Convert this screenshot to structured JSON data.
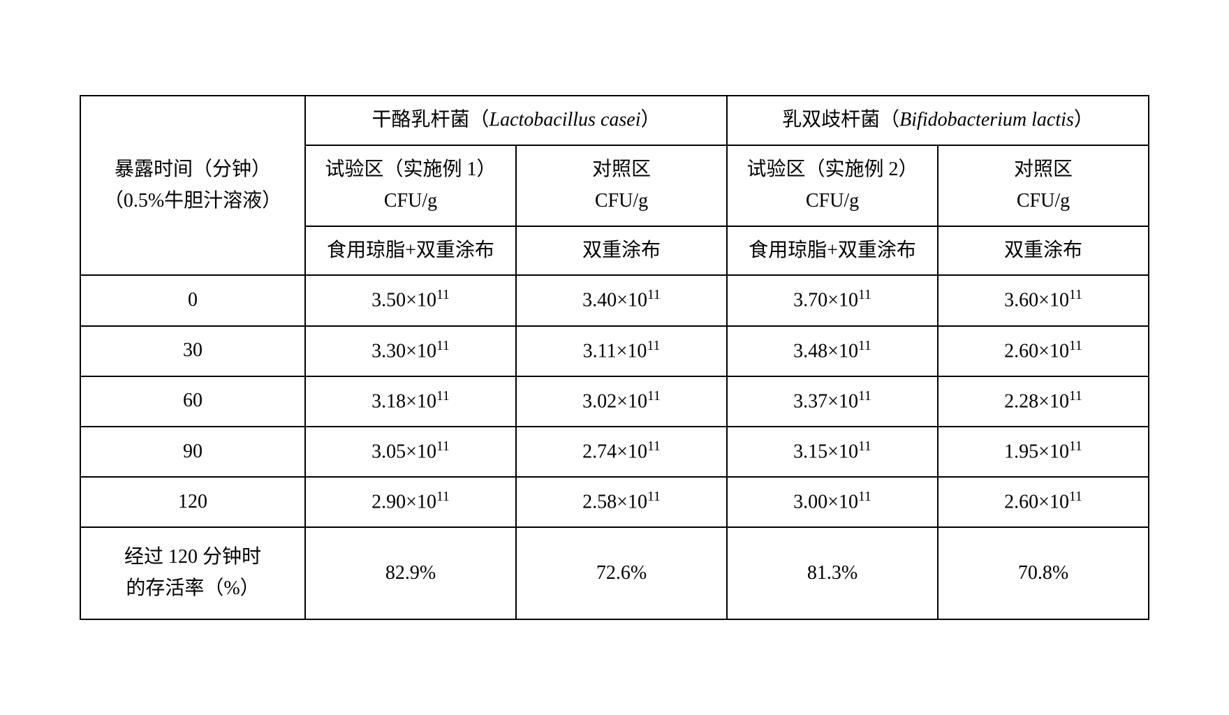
{
  "table": {
    "row_header_label_line1": "暴露时间（分钟）",
    "row_header_label_line2": "（0.5%牛胆汁溶液）",
    "group1_header_cn": "干酪乳杆菌（",
    "group1_header_latin": "Lactobacillus casei",
    "group1_header_close": "）",
    "group2_header_cn": "乳双歧杆菌（",
    "group2_header_latin": "Bifidobacterium lactis",
    "group2_header_close": "）",
    "sub1_col1_line1": "试验区（实施例 1）",
    "sub1_col1_line2": "CFU/g",
    "sub1_col2_line1": "对照区",
    "sub1_col2_line2": "CFU/g",
    "sub2_col1_line1": "试验区（实施例 2）",
    "sub2_col1_line2": "CFU/g",
    "sub2_col2_line1": "对照区",
    "sub2_col2_line2": "CFU/g",
    "method1": "食用琼脂+双重涂布",
    "method2": "双重涂布",
    "rows": [
      {
        "time": "0",
        "v1": "3.50×10",
        "e1": "11",
        "v2": "3.40×10",
        "e2": "11",
        "v3": "3.70×10",
        "e3": "11",
        "v4": "3.60×10",
        "e4": "11"
      },
      {
        "time": "30",
        "v1": "3.30×10",
        "e1": "11",
        "v2": "3.11×10",
        "e2": "11",
        "v3": "3.48×10",
        "e3": "11",
        "v4": "2.60×10",
        "e4": "11"
      },
      {
        "time": "60",
        "v1": "3.18×10",
        "e1": "11",
        "v2": "3.02×10",
        "e2": "11",
        "v3": "3.37×10",
        "e3": "11",
        "v4": "2.28×10",
        "e4": "11"
      },
      {
        "time": "90",
        "v1": "3.05×10",
        "e1": "11",
        "v2": "2.74×10",
        "e2": "11",
        "v3": "3.15×10",
        "e3": "11",
        "v4": "1.95×10",
        "e4": "11"
      },
      {
        "time": "120",
        "v1": "2.90×10",
        "e1": "11",
        "v2": "2.58×10",
        "e2": "11",
        "v3": "3.00×10",
        "e3": "11",
        "v4": "2.60×10",
        "e4": "11"
      }
    ],
    "last_row_label_line1": "经过 120 分钟时",
    "last_row_label_line2": "的存活率（%）",
    "last_row_values": [
      "82.9%",
      "72.6%",
      "81.3%",
      "70.8%"
    ]
  }
}
